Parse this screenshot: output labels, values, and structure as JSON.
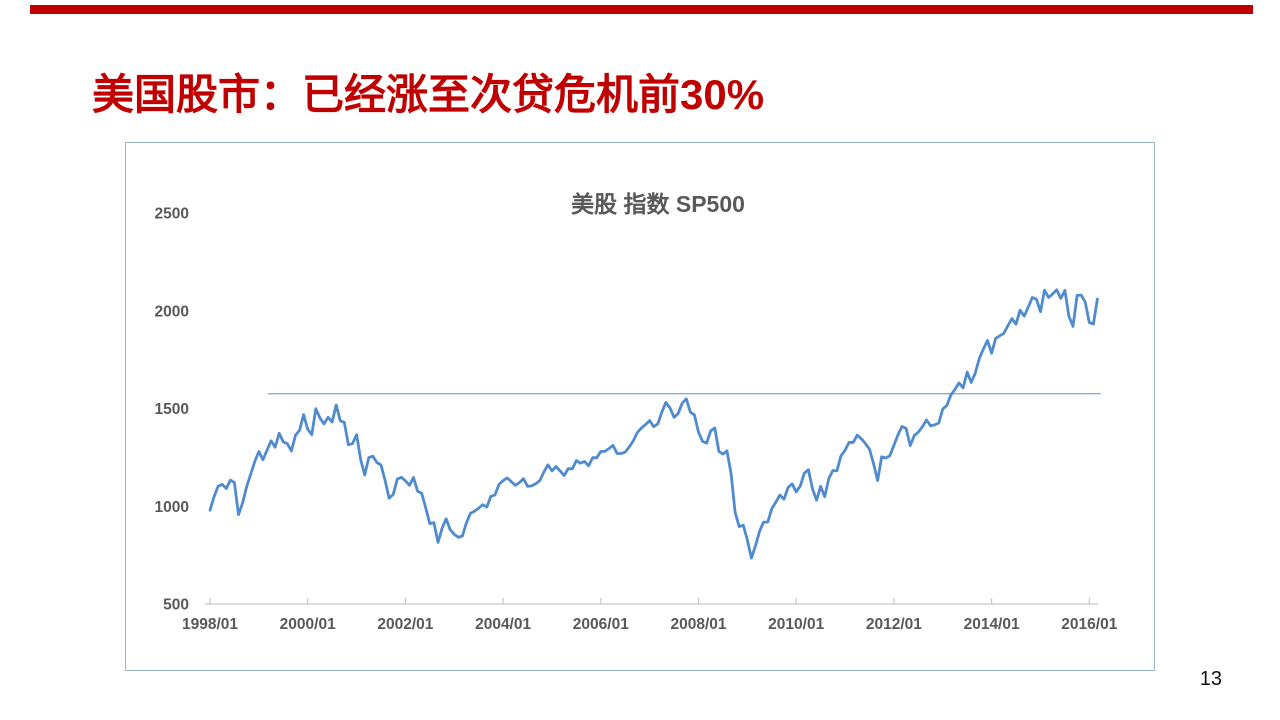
{
  "slide": {
    "title": "美国股市：已经涨至次贷危机前30%",
    "page_number": "13",
    "accent_color": "#c00000"
  },
  "chart": {
    "title": "美股 指数 SP500",
    "series_color": "#4f8bce",
    "reference_line_color": "#88afd4",
    "axis_line_color": "#c6c6c6",
    "axis_text_color": "#595959",
    "frame_border_color": "#9db6c6"
  },
  "chart_data": {
    "type": "line",
    "title": "美股 指数 SP500",
    "xlabel": "",
    "ylabel": "",
    "x_start": "1998/01",
    "x_interval": "monthly",
    "x_tick_labels": [
      "1998/01",
      "2000/01",
      "2002/01",
      "2004/01",
      "2006/01",
      "2008/01",
      "2010/01",
      "2012/01",
      "2014/01",
      "2016/01"
    ],
    "y_ticks": [
      500,
      1000,
      1500,
      2000,
      2500
    ],
    "ylim": [
      500,
      2500
    ],
    "grid": "off",
    "legend": "none",
    "reference_line": {
      "value": 1576,
      "start": "1999/03",
      "end": "2016/05"
    },
    "series": [
      {
        "name": "SP500",
        "values": [
          980,
          1049,
          1102,
          1112,
          1091,
          1134,
          1121,
          957,
          1017,
          1099,
          1164,
          1229,
          1280,
          1238,
          1286,
          1335,
          1302,
          1373,
          1329,
          1320,
          1283,
          1363,
          1389,
          1469,
          1394,
          1366,
          1499,
          1452,
          1421,
          1455,
          1431,
          1518,
          1437,
          1429,
          1315,
          1320,
          1366,
          1240,
          1160,
          1249,
          1256,
          1224,
          1211,
          1134,
          1041,
          1060,
          1139,
          1148,
          1130,
          1107,
          1147,
          1077,
          1067,
          990,
          911,
          916,
          815,
          886,
          936,
          880,
          856,
          841,
          848,
          917,
          964,
          975,
          990,
          1008,
          996,
          1051,
          1058,
          1112,
          1131,
          1145,
          1126,
          1107,
          1121,
          1141,
          1102,
          1104,
          1115,
          1130,
          1174,
          1212,
          1181,
          1204,
          1181,
          1157,
          1192,
          1191,
          1234,
          1220,
          1229,
          1207,
          1249,
          1248,
          1280,
          1281,
          1295,
          1311,
          1270,
          1270,
          1277,
          1304,
          1336,
          1378,
          1401,
          1418,
          1438,
          1407,
          1421,
          1482,
          1531,
          1503,
          1455,
          1474,
          1527,
          1549,
          1481,
          1468,
          1379,
          1331,
          1323,
          1386,
          1400,
          1280,
          1267,
          1283,
          1166,
          969,
          896,
          903,
          826,
          735,
          798,
          873,
          919,
          919,
          987,
          1021,
          1057,
          1036,
          1096,
          1115,
          1074,
          1104,
          1169,
          1187,
          1089,
          1031,
          1102,
          1049,
          1141,
          1183,
          1181,
          1258,
          1286,
          1327,
          1326,
          1364,
          1345,
          1321,
          1292,
          1219,
          1131,
          1253,
          1247,
          1258,
          1312,
          1366,
          1408,
          1398,
          1310,
          1362,
          1379,
          1407,
          1441,
          1412,
          1416,
          1426,
          1498,
          1515,
          1569,
          1598,
          1631,
          1606,
          1686,
          1633,
          1682,
          1757,
          1806,
          1848,
          1783,
          1859,
          1872,
          1884,
          1924,
          1960,
          1931,
          2003,
          1972,
          2018,
          2068,
          2059,
          1995,
          2105,
          2068,
          2086,
          2107,
          2063,
          2104,
          1972,
          1920,
          2079,
          2080,
          2044,
          1940,
          1932,
          2060
        ]
      }
    ]
  }
}
